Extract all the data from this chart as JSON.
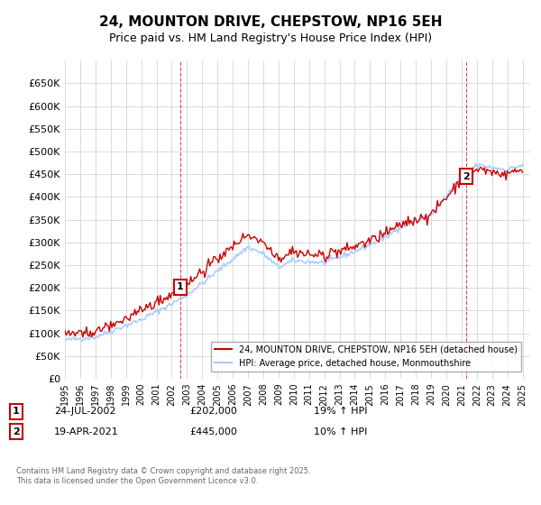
{
  "title": "24, MOUNTON DRIVE, CHEPSTOW, NP16 5EH",
  "subtitle": "Price paid vs. HM Land Registry's House Price Index (HPI)",
  "legend_label_property": "24, MOUNTON DRIVE, CHEPSTOW, NP16 5EH (detached house)",
  "legend_label_hpi": "HPI: Average price, detached house, Monmouthshire",
  "ylabel": "",
  "ylim": [
    0,
    700000
  ],
  "yticks": [
    0,
    50000,
    100000,
    150000,
    200000,
    250000,
    300000,
    350000,
    400000,
    450000,
    500000,
    550000,
    600000,
    650000
  ],
  "ytick_labels": [
    "£0",
    "£50K",
    "£100K",
    "£150K",
    "£200K",
    "£250K",
    "£300K",
    "£350K",
    "£400K",
    "£450K",
    "£500K",
    "£550K",
    "£600K",
    "£650K"
  ],
  "property_color": "#cc0000",
  "hpi_color": "#aaccff",
  "vline_color": "#cc0000",
  "purchase1_year": 2002.55,
  "purchase1_price": 202000,
  "purchase1_label": "1",
  "purchase2_year": 2021.3,
  "purchase2_price": 445000,
  "purchase2_label": "2",
  "annotation1_date": "24-JUL-2002",
  "annotation1_price": "£202,000",
  "annotation1_hpi": "19% ↑ HPI",
  "annotation2_date": "19-APR-2021",
  "annotation2_price": "£445,000",
  "annotation2_hpi": "10% ↑ HPI",
  "footer": "Contains HM Land Registry data © Crown copyright and database right 2025.\nThis data is licensed under the Open Government Licence v3.0.",
  "background_color": "#ffffff",
  "grid_color": "#cccccc",
  "year_start": 1995,
  "year_end": 2025
}
